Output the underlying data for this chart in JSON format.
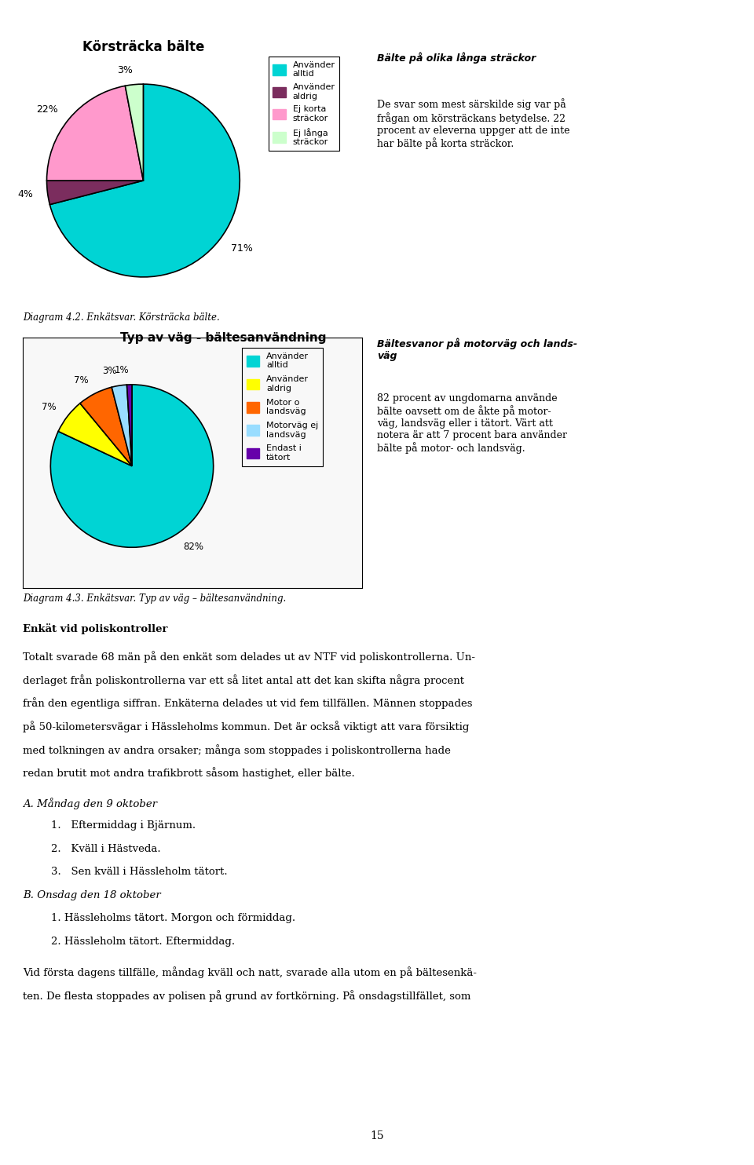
{
  "page_bg": "#ffffff",
  "chart1": {
    "title": "Körsträcka bälte",
    "values": [
      71,
      4,
      22,
      3
    ],
    "labels": [
      "71%",
      "4%",
      "22%",
      "3%"
    ],
    "colors": [
      "#00d4d4",
      "#7b2d5e",
      "#ff99cc",
      "#ccffcc"
    ],
    "legend_labels": [
      "Använder\nalltid",
      "Använder\naldrig",
      "Ej korta\nsträckor",
      "Ej långa\nsträckor"
    ],
    "startangle": 90
  },
  "chart2": {
    "title": "Typ av väg - bältesanvändning",
    "values": [
      82,
      7,
      7,
      3,
      1
    ],
    "labels": [
      "82%",
      "7%",
      "7%",
      "3%",
      "1%"
    ],
    "colors": [
      "#00d4d4",
      "#ffff00",
      "#ff6600",
      "#99ddff",
      "#6600aa"
    ],
    "legend_labels": [
      "Använder\nalltid",
      "Använder\naldrig",
      "Motor o\nlandsväg",
      "Motorväg ej\nlandsväg",
      "Endast i\ntätort"
    ],
    "startangle": 90
  },
  "caption1": "Diagram 4.2. Enkätsvar. Körsträcka bälte.",
  "caption2": "Diagram 4.3. Enkätsvar. Typ av väg – bältesanvändning.",
  "right_text1_title": "Bälte på olika långa sträckor",
  "right_text1_body": "De svar som mest särskilde sig var på\nfrågan om körsträckans betydelse. 22\nprocent av eleverna uppger att de inte\nhar bälte på korta sträckor.",
  "right_text2_title": "Bältesvanor på motorväg och lands-\nväg",
  "right_text2_body": "82 procent av ungdomarna använde\nbälte oavsett om de åkte på motor-\nväg, landsväg eller i tätort. Värt att\nnotera är att 7 procent bara använder\nbälte på motor- och landsväg.",
  "bottom_text_bold": "Enkät vid poliskontroller",
  "bottom_text": "Totalt svarade 68 män på den enkät som delades ut av NTF vid poliskontrollerna. Underlaget från poliskontrollerna var ett så litet antal att det kan skifta några procent från den egentliga siffran. Enkäterna delades ut vid fem tillfällen. Männen stoppades på 50-kilometersvägar i Hässleholms kommun. Det är också viktigt att vara försiktig med tolkningen av andra orsaker; många som stoppades i poliskontrollerna hade redan brutit mot andra trafikbrott såsom hastighet, eller bälte.",
  "section_a_title": "A. Måndag den 9 oktober",
  "section_a_items": [
    "1.\tEftermiddag i Bjärnum.",
    "2.\tKväll i Hästveda.",
    "3.\tSen kväll i Hässleholm tätort."
  ],
  "section_b_title": "B. Onsdag den 18 oktober",
  "section_b_items": [
    "1. Hässleholms tätort. Morgon och förmiddag.",
    "2. Hässleholm tätort. Eftermiddag."
  ],
  "final_text": "Vid första dagens tillfälle, måndag kväll och natt, svarade alla utom en på bältesenkäten. De flesta stoppades av polisen på grund av fortkörning. På onsdagstillfället, som",
  "page_number": "15"
}
